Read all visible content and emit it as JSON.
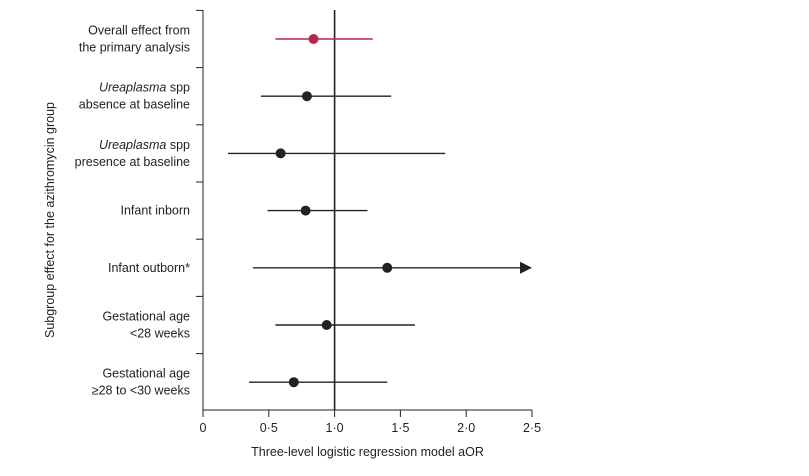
{
  "chart_data": {
    "type": "forest",
    "xlabel": "Three-level logistic regression model aOR",
    "ylabel": "Subgroup effect for the azithromycin group",
    "xlim": [
      0,
      2.5
    ],
    "xticks": [
      {
        "value": 0,
        "label": "0"
      },
      {
        "value": 0.5,
        "label": "0·5"
      },
      {
        "value": 1.0,
        "label": "1·0"
      },
      {
        "value": 1.5,
        "label": "1·5"
      },
      {
        "value": 2.0,
        "label": "2·0"
      },
      {
        "value": 2.5,
        "label": "2·5"
      }
    ],
    "reference_line": 1.0,
    "colors": {
      "primary": "#b5284f",
      "subgroup": "#222222",
      "axis": "#222222"
    },
    "rows": [
      {
        "label_lines": [
          [
            {
              "text": "Overall effect from",
              "italic": false
            }
          ],
          [
            {
              "text": "the primary analysis",
              "italic": false
            }
          ]
        ],
        "estimate": 0.84,
        "ci": [
          0.55,
          1.29
        ],
        "highlight": true,
        "ci_arrow": false
      },
      {
        "label_lines": [
          [
            {
              "text": "Ureaplasma",
              "italic": true
            },
            {
              "text": " spp",
              "italic": false
            }
          ],
          [
            {
              "text": "absence at baseline",
              "italic": false
            }
          ]
        ],
        "estimate": 0.79,
        "ci": [
          0.44,
          1.43
        ],
        "highlight": false,
        "ci_arrow": false
      },
      {
        "label_lines": [
          [
            {
              "text": "Ureaplasma",
              "italic": true
            },
            {
              "text": " spp",
              "italic": false
            }
          ],
          [
            {
              "text": "presence at baseline",
              "italic": false
            }
          ]
        ],
        "estimate": 0.59,
        "ci": [
          0.19,
          1.84
        ],
        "highlight": false,
        "ci_arrow": false
      },
      {
        "label_lines": [
          [
            {
              "text": "Infant inborn",
              "italic": false
            }
          ]
        ],
        "estimate": 0.78,
        "ci": [
          0.49,
          1.25
        ],
        "highlight": false,
        "ci_arrow": false
      },
      {
        "label_lines": [
          [
            {
              "text": "Infant outborn*",
              "italic": false
            }
          ]
        ],
        "estimate": 1.4,
        "ci": [
          0.38,
          2.5
        ],
        "highlight": false,
        "ci_arrow": true
      },
      {
        "label_lines": [
          [
            {
              "text": "Gestational age",
              "italic": false
            }
          ],
          [
            {
              "text": "<28 weeks",
              "italic": false
            }
          ]
        ],
        "estimate": 0.94,
        "ci": [
          0.55,
          1.61
        ],
        "highlight": false,
        "ci_arrow": false
      },
      {
        "label_lines": [
          [
            {
              "text": "Gestational age",
              "italic": false
            }
          ],
          [
            {
              "text": "≥28 to <30 weeks",
              "italic": false
            }
          ]
        ],
        "estimate": 0.69,
        "ci": [
          0.35,
          1.4
        ],
        "highlight": false,
        "ci_arrow": false
      }
    ]
  }
}
